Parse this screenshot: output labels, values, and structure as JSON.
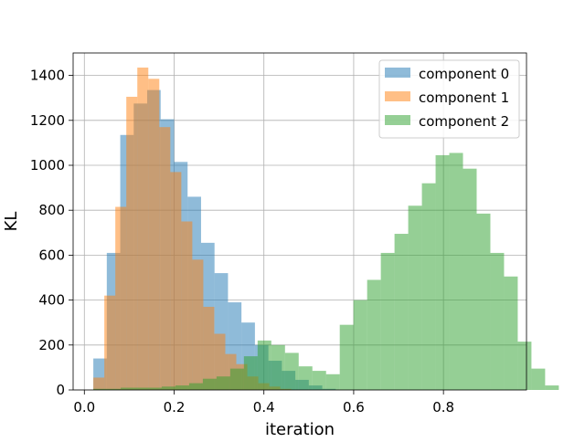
{
  "chart_data": {
    "type": "histogram",
    "title": "",
    "xlabel": "iteration",
    "ylabel": "KL",
    "xlim": [
      -0.025,
      0.985
    ],
    "ylim": [
      0,
      1500
    ],
    "xticks": [
      0.0,
      0.2,
      0.4,
      0.6,
      0.8
    ],
    "xtick_labels": [
      "0.0",
      "0.2",
      "0.4",
      "0.6",
      "0.8"
    ],
    "yticks": [
      0,
      200,
      400,
      600,
      800,
      1000,
      1200,
      1400
    ],
    "ytick_labels": [
      "0",
      "200",
      "400",
      "600",
      "800",
      "1000",
      "1200",
      "1400"
    ],
    "grid": true,
    "legend_position": "upper right",
    "alpha": 0.5,
    "series": [
      {
        "name": "component 0",
        "color": "#1f77b4",
        "bin_start": 0.02,
        "bin_width": 0.03,
        "counts": [
          140,
          610,
          1135,
          1275,
          1335,
          1205,
          1015,
          860,
          655,
          520,
          390,
          300,
          200,
          130,
          85,
          45,
          20,
          5
        ]
      },
      {
        "name": "component 1",
        "color": "#ff7f0e",
        "bin_start": 0.02,
        "bin_width": 0.0245,
        "counts": [
          55,
          420,
          815,
          1305,
          1435,
          1385,
          1170,
          970,
          750,
          580,
          370,
          250,
          160,
          115,
          60,
          30,
          15,
          5
        ]
      },
      {
        "name": "component 2",
        "color": "#2ca02c",
        "bin_start": 0.02,
        "bin_width": 0.0305,
        "counts": [
          5,
          5,
          10,
          10,
          10,
          15,
          20,
          30,
          50,
          60,
          95,
          150,
          220,
          200,
          165,
          105,
          85,
          70,
          290,
          400,
          490,
          610,
          695,
          820,
          920,
          1045,
          1055,
          985,
          785,
          610,
          505,
          215,
          95,
          20
        ]
      }
    ]
  }
}
